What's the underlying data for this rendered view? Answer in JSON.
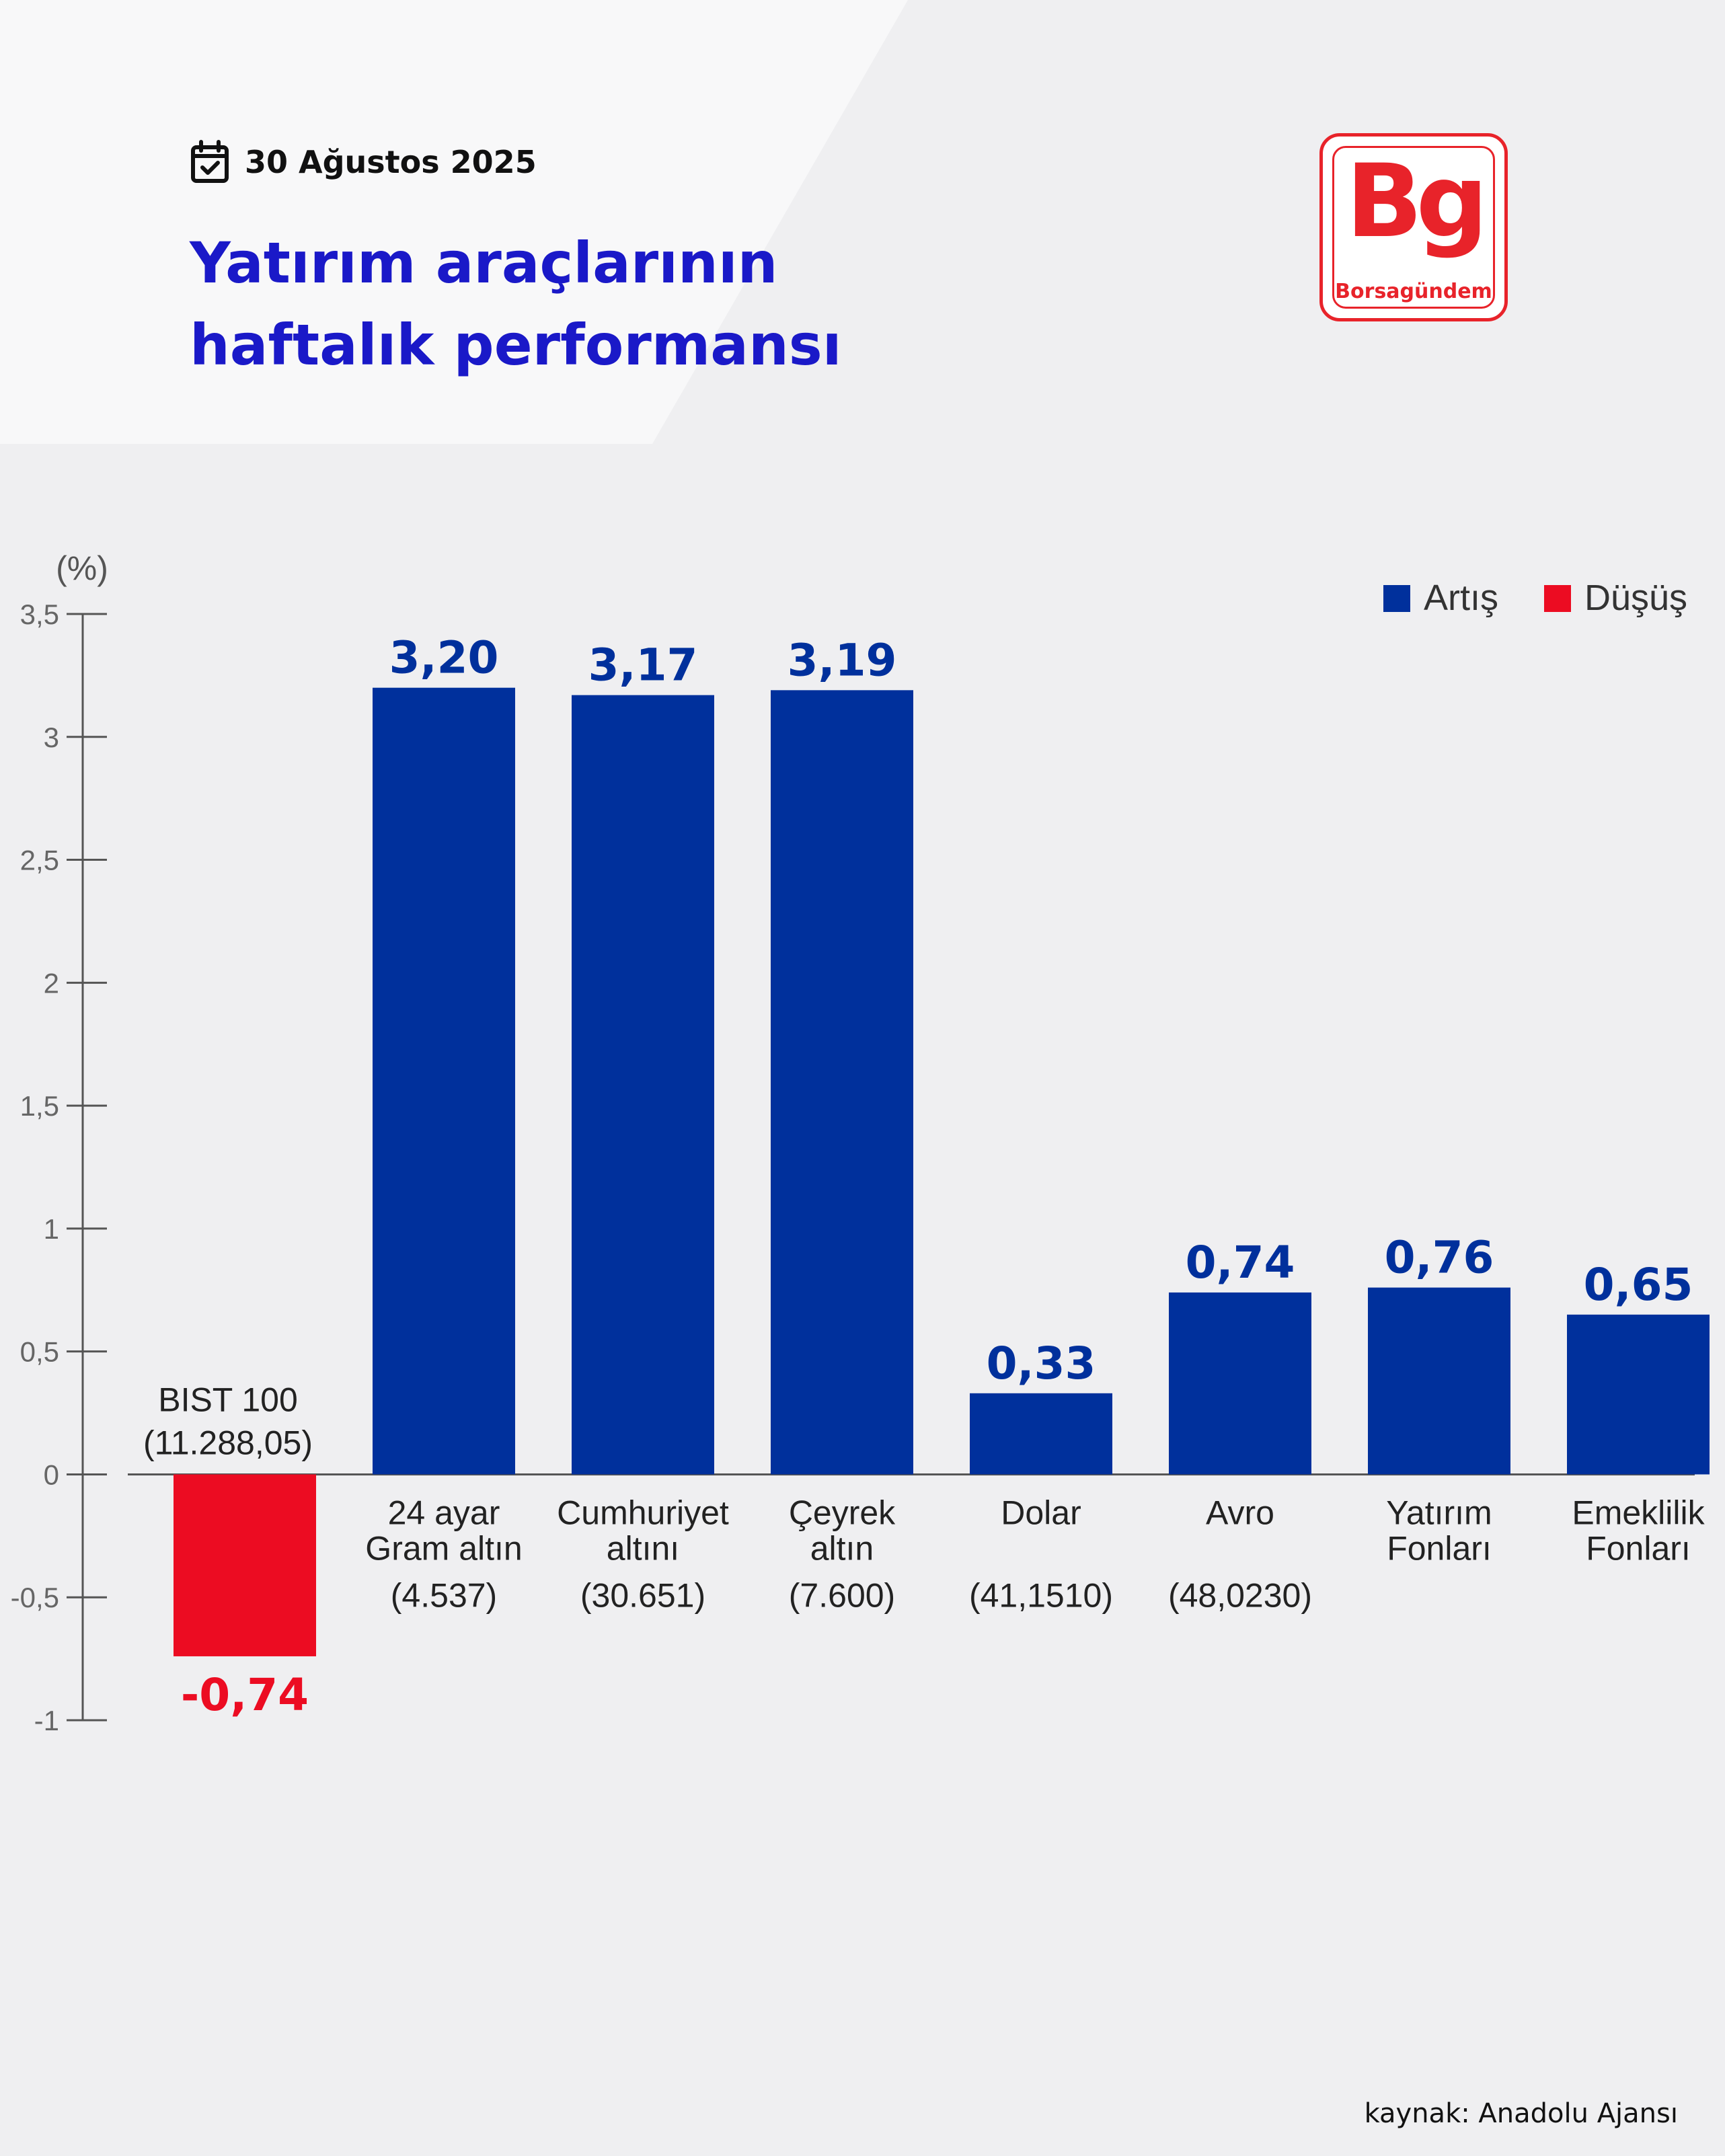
{
  "header": {
    "date": "30 Ağustos 2025",
    "title_lines": [
      "Yatırım araçlarının",
      "haftalık performansı"
    ]
  },
  "logo": {
    "mark": "Bg",
    "name": "Borsagündem",
    "color": "#e8232a"
  },
  "colors": {
    "increase": "#00309c",
    "decrease": "#ec0c22",
    "title": "#1a19c8"
  },
  "icons": {
    "date": "calendar-check-icon"
  },
  "source": "kaynak: Anadolu Ajansı",
  "chart_data": {
    "type": "bar",
    "ylabel": "(%)",
    "ylim": [
      -1,
      3.5
    ],
    "yticks": [
      {
        "value": 3.5,
        "label": "3,5"
      },
      {
        "value": 3,
        "label": "3"
      },
      {
        "value": 2.5,
        "label": "2,5"
      },
      {
        "value": 2,
        "label": "2"
      },
      {
        "value": 1.5,
        "label": "1,5"
      },
      {
        "value": 1,
        "label": "1"
      },
      {
        "value": 0.5,
        "label": "0,5"
      },
      {
        "value": 0,
        "label": "0"
      },
      {
        "value": -0.5,
        "label": "-0,5"
      },
      {
        "value": -1,
        "label": "-1"
      }
    ],
    "legend": {
      "position": "top-right",
      "items": [
        {
          "label": "Artış",
          "color": "#00309c"
        },
        {
          "label": "Düşüş",
          "color": "#ec0c22"
        }
      ]
    },
    "bars": [
      {
        "category": [
          "BIST 100"
        ],
        "subvalue": "(11.288,05)",
        "value": -0.74,
        "label": "-0,74"
      },
      {
        "category": [
          "24 ayar",
          "Gram altın"
        ],
        "subvalue": "(4.537)",
        "value": 3.2,
        "label": "3,20"
      },
      {
        "category": [
          "Cumhuriyet",
          "altını"
        ],
        "subvalue": "(30.651)",
        "value": 3.17,
        "label": "3,17"
      },
      {
        "category": [
          "Çeyrek",
          "altın"
        ],
        "subvalue": "(7.600)",
        "value": 3.19,
        "label": "3,19"
      },
      {
        "category": [
          "Dolar"
        ],
        "subvalue": "(41,1510)",
        "value": 0.33,
        "label": "0,33"
      },
      {
        "category": [
          "Avro"
        ],
        "subvalue": "(48,0230)",
        "value": 0.74,
        "label": "0,74"
      },
      {
        "category": [
          "Yatırım",
          "Fonları"
        ],
        "subvalue": "",
        "value": 0.76,
        "label": "0,76"
      },
      {
        "category": [
          "Emeklilik",
          "Fonları"
        ],
        "subvalue": "",
        "value": 0.65,
        "label": "0,65"
      }
    ]
  }
}
